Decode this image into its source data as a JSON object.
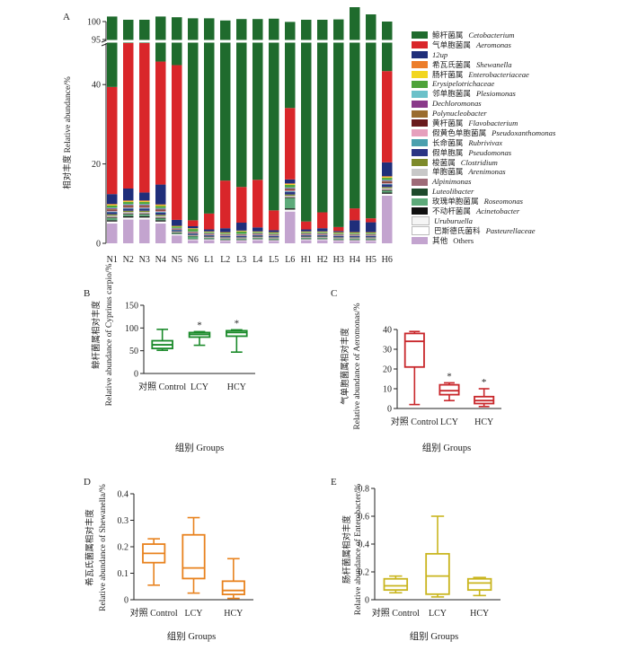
{
  "chart_data": [
    {
      "panel": "A",
      "type": "bar",
      "stacked": true,
      "ylabel": "相对丰度 Relative abundance/%",
      "y_ticks": [
        "0",
        "20",
        "40",
        "95",
        "100"
      ],
      "broken_axis": true,
      "categories": [
        "N1",
        "N2",
        "N3",
        "N4",
        "N5",
        "N6",
        "L1",
        "L2",
        "L3",
        "L4",
        "L5",
        "L6",
        "H1",
        "H2",
        "H3",
        "H4",
        "H5",
        "H6"
      ],
      "series": [
        {
          "name": "其他 Others",
          "color": "#c3a4cf",
          "values": [
            5,
            6,
            6,
            5,
            2,
            0.8,
            0.8,
            0.6,
            0.6,
            0.8,
            0.6,
            8,
            0.8,
            0.8,
            0.6,
            0.6,
            0.6,
            12
          ]
        },
        {
          "name": "巴斯德氏菌科 Pasteurellaceae",
          "color": "#ffffff",
          "values": [
            0.3,
            0.3,
            0.3,
            0.3,
            0.2,
            0.1,
            0.1,
            0.1,
            0.1,
            0.1,
            0.1,
            0.3,
            0.1,
            0.1,
            0.1,
            0.1,
            0.1,
            0.3
          ]
        },
        {
          "name": "Uruburuella",
          "color": "#f5f5f5",
          "values": [
            0.2,
            0.2,
            0.2,
            0.2,
            0.1,
            0.1,
            0.1,
            0.1,
            0.1,
            0.1,
            0.1,
            0.2,
            0.1,
            0.1,
            0.1,
            0.1,
            0.1,
            0.2
          ]
        },
        {
          "name": "不动杆菌属 Acinetobacter",
          "color": "#111111",
          "values": [
            0.3,
            0.3,
            0.3,
            0.3,
            0.1,
            0.1,
            0.1,
            0.1,
            0.1,
            0.1,
            0.1,
            0.3,
            0.1,
            0.1,
            0.1,
            0.1,
            0.1,
            0.3
          ]
        },
        {
          "name": "玫瑰单胞菌属 Roseomonas",
          "color": "#5daa7a",
          "values": [
            0.5,
            0.4,
            0.4,
            0.4,
            0.2,
            0.6,
            0.2,
            0.2,
            0.2,
            0.2,
            0.2,
            2.5,
            0.2,
            0.2,
            0.2,
            0.2,
            0.2,
            0.4
          ]
        },
        {
          "name": "Luteolibacter",
          "color": "#1e4a2c",
          "values": [
            0.2,
            0.2,
            0.2,
            0.2,
            0.1,
            0.1,
            0.1,
            0.1,
            0.1,
            0.1,
            0.1,
            0.2,
            0.1,
            0.1,
            0.1,
            0.1,
            0.1,
            0.2
          ]
        },
        {
          "name": "Alpinimonas",
          "color": "#9e6b78",
          "values": [
            0.2,
            0.2,
            0.2,
            0.2,
            0.1,
            0.1,
            0.1,
            0.1,
            0.1,
            0.1,
            0.1,
            0.2,
            0.1,
            0.1,
            0.1,
            0.1,
            0.1,
            0.2
          ]
        },
        {
          "name": "单胞菌属 Arenimonas",
          "color": "#c8c8c8",
          "values": [
            0.3,
            0.3,
            0.3,
            0.3,
            0.1,
            0.1,
            0.1,
            0.1,
            0.1,
            0.1,
            0.1,
            0.3,
            0.1,
            0.1,
            0.1,
            0.1,
            0.1,
            0.3
          ]
        },
        {
          "name": "梭菌属 Clostridium",
          "color": "#7d8a2a",
          "values": [
            0.3,
            0.3,
            0.3,
            0.3,
            0.1,
            0.1,
            0.1,
            0.1,
            0.1,
            0.1,
            0.1,
            0.3,
            0.1,
            0.1,
            0.1,
            0.1,
            0.1,
            0.3
          ]
        },
        {
          "name": "假单胞属 Pseudomonas",
          "color": "#2b3583",
          "values": [
            0.5,
            0.5,
            0.5,
            0.5,
            0.3,
            0.3,
            0.3,
            0.3,
            0.3,
            0.3,
            0.3,
            0.6,
            0.3,
            0.3,
            0.3,
            0.3,
            0.3,
            0.6
          ]
        },
        {
          "name": "长命菌属 Rubrivivax",
          "color": "#4aa0ae",
          "values": [
            0.2,
            0.2,
            0.2,
            0.2,
            0.1,
            0.1,
            0.1,
            0.1,
            0.1,
            0.1,
            0.1,
            0.2,
            0.1,
            0.1,
            0.1,
            0.1,
            0.1,
            0.2
          ]
        },
        {
          "name": "假黄色单胞菌属 Pseudoxanthomonas",
          "color": "#e6a0bd",
          "values": [
            0.2,
            0.2,
            0.2,
            0.2,
            0.1,
            0.1,
            0.1,
            0.1,
            0.1,
            0.1,
            0.1,
            0.2,
            0.1,
            0.1,
            0.1,
            0.1,
            0.1,
            0.2
          ]
        },
        {
          "name": "黄杆菌属 Flavobacterium",
          "color": "#6a1b1d",
          "values": [
            0.2,
            0.2,
            0.2,
            0.2,
            0.1,
            0.1,
            0.1,
            0.1,
            0.1,
            0.1,
            0.1,
            0.2,
            0.1,
            0.1,
            0.1,
            0.1,
            0.1,
            0.2
          ]
        },
        {
          "name": "Polynucleobacter",
          "color": "#9a6c2e",
          "values": [
            0.2,
            0.2,
            0.2,
            0.2,
            0.1,
            0.1,
            0.1,
            0.1,
            0.1,
            0.1,
            0.1,
            0.2,
            0.1,
            0.1,
            0.1,
            0.1,
            0.1,
            0.2
          ]
        },
        {
          "name": "Dechloromonas",
          "color": "#8a3a8a",
          "values": [
            0.2,
            0.2,
            0.2,
            0.2,
            0.1,
            0.1,
            0.1,
            0.1,
            0.1,
            0.1,
            0.1,
            0.2,
            0.1,
            0.1,
            0.1,
            0.1,
            0.1,
            0.2
          ]
        },
        {
          "name": "邻单胞菌属 Plesiomonas",
          "color": "#6bc1c9",
          "values": [
            0.2,
            0.2,
            0.2,
            0.2,
            0.1,
            0.1,
            0.1,
            0.1,
            0.1,
            0.1,
            0.1,
            0.2,
            0.1,
            0.1,
            0.1,
            0.1,
            0.1,
            0.2
          ]
        },
        {
          "name": "Erysipelotrichaceae",
          "color": "#4ea33a",
          "values": [
            0.5,
            0.5,
            0.5,
            0.5,
            0.3,
            0.6,
            0.2,
            0.2,
            0.6,
            0.2,
            0.2,
            0.6,
            0.2,
            0.2,
            0.2,
            0.2,
            0.2,
            0.5
          ]
        },
        {
          "name": "肠杆菌属 Enterobacteriaceae",
          "color": "#f2d61f",
          "values": [
            0.2,
            0.2,
            0.2,
            0.2,
            0.1,
            0.1,
            0.1,
            0.1,
            0.1,
            0.1,
            0.1,
            0.2,
            0.1,
            0.1,
            0.1,
            0.1,
            0.1,
            0.2
          ]
        },
        {
          "name": "希瓦氏菌属 Shewanella",
          "color": "#ec7d2a",
          "values": [
            0.2,
            0.2,
            0.2,
            0.2,
            0.1,
            0.1,
            0.1,
            0.1,
            0.1,
            0.1,
            0.1,
            0.2,
            0.1,
            0.1,
            0.1,
            0.1,
            0.1,
            0.2
          ]
        },
        {
          "name": "12up",
          "color": "#1f2e7a",
          "values": [
            2.5,
            3,
            2,
            5,
            1.5,
            0.5,
            0.5,
            1,
            2,
            1,
            0.5,
            1,
            0.5,
            0.8,
            0.3,
            3,
            2.5,
            3.5
          ]
        },
        {
          "name": "气单胞菌属 Aeromonas",
          "color": "#d9262a",
          "values": [
            27,
            37,
            38,
            31,
            39,
            1.5,
            4,
            12,
            9,
            12,
            5,
            18,
            2,
            4,
            1,
            3,
            1,
            23
          ]
        },
        {
          "name": "鲸杆菌属 Cetobacterium",
          "color": "#1f6b2d",
          "values": [
            62.0,
            49.7,
            49.7,
            55.6,
            56.3,
            95.1,
            93.4,
            84.5,
            86.5,
            84.7,
            92.5,
            65.8,
            95.0,
            92.7,
            96.5,
            95.2,
            95.7,
            56.6
          ]
        }
      ]
    },
    {
      "panel": "B",
      "type": "box",
      "color": "#1a8a2a",
      "ylabel_cn": "鲸杆菌属相对丰度",
      "ylabel_en": "Relative abundance of Cyprinus carpio/%",
      "xlabel": "组别 Groups",
      "categories": [
        "对照 Control",
        "LCY",
        "HCY"
      ],
      "ylim": [
        0,
        150
      ],
      "yticks": [
        "0",
        "50",
        "100",
        "150"
      ],
      "boxes": [
        {
          "min": 51,
          "q1": 55,
          "median": 63,
          "q3": 72,
          "max": 97,
          "star": ""
        },
        {
          "min": 62,
          "q1": 80,
          "median": 86,
          "q3": 90,
          "max": 92,
          "star": "*"
        },
        {
          "min": 47,
          "q1": 82,
          "median": 90,
          "q3": 94,
          "max": 96,
          "star": "*"
        }
      ]
    },
    {
      "panel": "C",
      "type": "box",
      "color": "#c8272b",
      "ylabel_cn": "气单胞菌属相对丰度",
      "ylabel_en": "Relative abundance of Aeromonas/%",
      "xlabel": "组别 Groups",
      "categories": [
        "对照 Control",
        "LCY",
        "HCY"
      ],
      "ylim": [
        0,
        40
      ],
      "yticks": [
        "0",
        "10",
        "20",
        "30",
        "40"
      ],
      "boxes": [
        {
          "min": 2,
          "q1": 21,
          "median": 34,
          "q3": 38,
          "max": 39,
          "star": ""
        },
        {
          "min": 4,
          "q1": 7,
          "median": 9,
          "q3": 12,
          "max": 13,
          "star": "*"
        },
        {
          "min": 1,
          "q1": 2.5,
          "median": 4,
          "q3": 6,
          "max": 10,
          "star": "*"
        }
      ]
    },
    {
      "panel": "D",
      "type": "box",
      "color": "#e8821e",
      "ylabel_cn": "希瓦氏菌属相对丰度",
      "ylabel_en": "Relative abundance of Shewanella/%",
      "xlabel": "组别 Groups",
      "categories": [
        "对照 Control",
        "LCY",
        "HCY"
      ],
      "ylim": [
        0,
        0.4
      ],
      "yticks": [
        "0",
        "0.1",
        "0.2",
        "0.3",
        "0.4"
      ],
      "boxes": [
        {
          "min": 0.055,
          "q1": 0.14,
          "median": 0.175,
          "q3": 0.21,
          "max": 0.23,
          "star": ""
        },
        {
          "min": 0.025,
          "q1": 0.08,
          "median": 0.12,
          "q3": 0.245,
          "max": 0.31,
          "star": ""
        },
        {
          "min": 0.005,
          "q1": 0.02,
          "median": 0.035,
          "q3": 0.07,
          "max": 0.155,
          "star": ""
        }
      ]
    },
    {
      "panel": "E",
      "type": "box",
      "color": "#c9b51e",
      "ylabel_cn": "肠杆菌属相对丰度",
      "ylabel_en": "Relative abundance of Enterobacter/%",
      "xlabel": "组别 Groups",
      "categories": [
        "对照 Control",
        "LCY",
        "HCY"
      ],
      "ylim": [
        0,
        0.8
      ],
      "yticks": [
        "0",
        "0.2",
        "0.4",
        "0.6",
        "0.8"
      ],
      "boxes": [
        {
          "min": 0.05,
          "q1": 0.07,
          "median": 0.1,
          "q3": 0.15,
          "max": 0.17,
          "star": ""
        },
        {
          "min": 0.02,
          "q1": 0.04,
          "median": 0.17,
          "q3": 0.33,
          "max": 0.6,
          "star": ""
        },
        {
          "min": 0.03,
          "q1": 0.07,
          "median": 0.12,
          "q3": 0.15,
          "max": 0.16,
          "star": ""
        }
      ]
    }
  ]
}
